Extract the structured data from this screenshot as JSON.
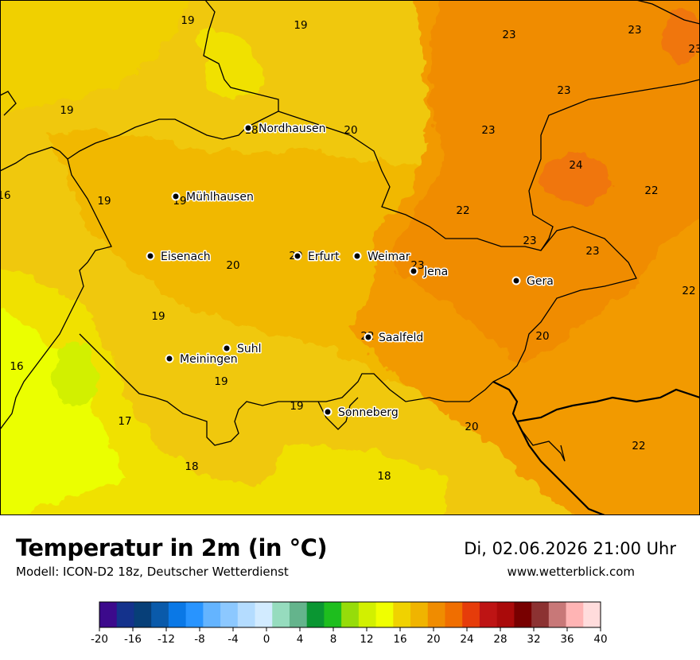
{
  "title": "Temperatur in 2m (in °C)",
  "model": "Modell: ICON-D2 18z, Deutscher Wetterdienst",
  "datetime": "Di, 02.06.2026 21:00 Uhr",
  "website": "www.wetterblick.com",
  "cities": [
    {
      "name": "Nordhausen"
    },
    {
      "name": "Mühlhausen"
    },
    {
      "name": "Eisenach"
    },
    {
      "name": "Erfurt"
    },
    {
      "name": "Weimar"
    },
    {
      "name": "Jena"
    },
    {
      "name": "Gera"
    },
    {
      "name": "Suhl"
    },
    {
      "name": "Meiningen"
    },
    {
      "name": "Saalfeld"
    },
    {
      "name": "Sonneberg"
    }
  ],
  "temperature_labels": [
    "19",
    "19",
    "19",
    "18",
    "20",
    "23",
    "23",
    "23",
    "23",
    "23",
    "24",
    "22",
    "16",
    "19",
    "19",
    "22",
    "23",
    "20",
    "20",
    "20",
    "23",
    "23",
    "22",
    "19",
    "22",
    "16",
    "19",
    "17",
    "19",
    "20",
    "18",
    "18",
    "22"
  ],
  "legend": {
    "ticks": [
      "-20",
      "-16",
      "-12",
      "-8",
      "-4",
      "0",
      "4",
      "8",
      "12",
      "16",
      "20",
      "24",
      "28",
      "32",
      "36",
      "40"
    ],
    "colors": [
      "#3c0a8c",
      "#14328c",
      "#073f78",
      "#0a5aaa",
      "#0a78e6",
      "#2894ff",
      "#64b4ff",
      "#8cc8ff",
      "#b4dcff",
      "#d2ebff",
      "#96dcbe",
      "#64b48c",
      "#0a9632",
      "#1ebe1e",
      "#96dc0a",
      "#d2f000",
      "#f0ff00",
      "#f0d200",
      "#f0b400",
      "#f08c00",
      "#f06e00",
      "#e63c0a",
      "#be1414",
      "#aa0a0a",
      "#780000",
      "#8c3232",
      "#c87878",
      "#ffb4b4",
      "#ffdcdc"
    ]
  },
  "colors": {
    "temp_16": "#ebff00",
    "temp_17": "#f0ff00",
    "temp_18": "#f2d500",
    "temp_19": "#f0cc05",
    "temp_20": "#f0b400",
    "temp_22": "#f19a05",
    "temp_23": "#f08c00",
    "temp_24": "#f06e00",
    "temp_13": "#d2f000"
  }
}
